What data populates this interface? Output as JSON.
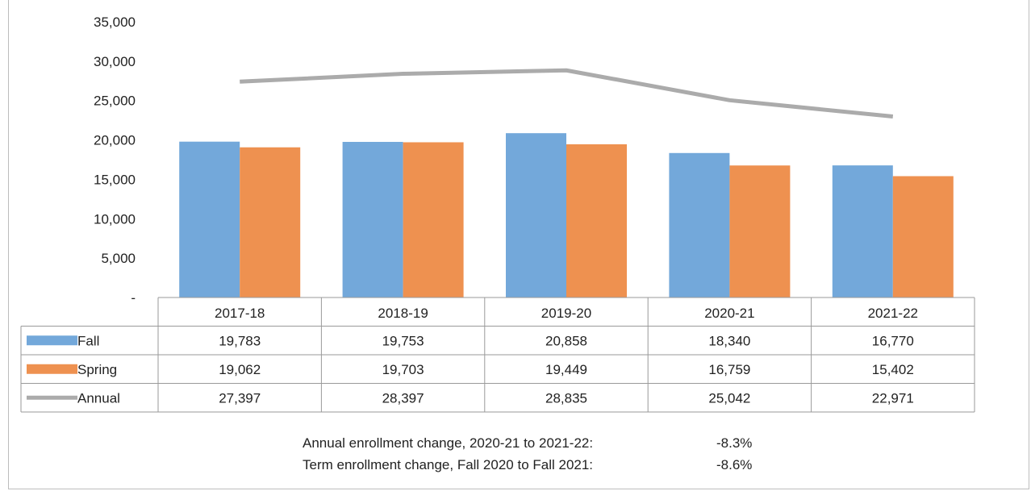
{
  "chart_data": {
    "type": "bar",
    "categories": [
      "2017-18",
      "2018-19",
      "2019-20",
      "2020-21",
      "2021-22"
    ],
    "series": [
      {
        "name": "Fall",
        "kind": "bar",
        "color": "#73a8da",
        "values": [
          19783,
          19753,
          20858,
          18340,
          16770
        ],
        "labels": [
          "19,783",
          "19,753",
          "20,858",
          "18,340",
          "16,770"
        ]
      },
      {
        "name": "Spring",
        "kind": "bar",
        "color": "#ee9150",
        "values": [
          19062,
          19703,
          19449,
          16759,
          15402
        ],
        "labels": [
          "19,062",
          "19,703",
          "19,449",
          "16,759",
          "15,402"
        ]
      },
      {
        "name": "Annual",
        "kind": "line",
        "color": "#ababab",
        "values": [
          27397,
          28397,
          28835,
          25042,
          22971
        ],
        "labels": [
          "27,397",
          "28,397",
          "28,835",
          "25,042",
          "22,971"
        ]
      }
    ],
    "ylim": [
      0,
      35000
    ],
    "yticks": [
      0,
      5000,
      10000,
      15000,
      20000,
      25000,
      30000,
      35000
    ],
    "ytick_labels": [
      "-",
      "5,000",
      "10,000",
      "15,000",
      "20,000",
      "25,000",
      "30,000",
      "35,000"
    ],
    "grid": false,
    "legend": "data-table"
  },
  "notes": [
    {
      "label": "Annual enrollment change, 2020-21 to 2021-22:",
      "value": "-8.3%"
    },
    {
      "label": "Term enrollment change, Fall 2020 to Fall 2021:",
      "value": "-8.6%"
    }
  ]
}
